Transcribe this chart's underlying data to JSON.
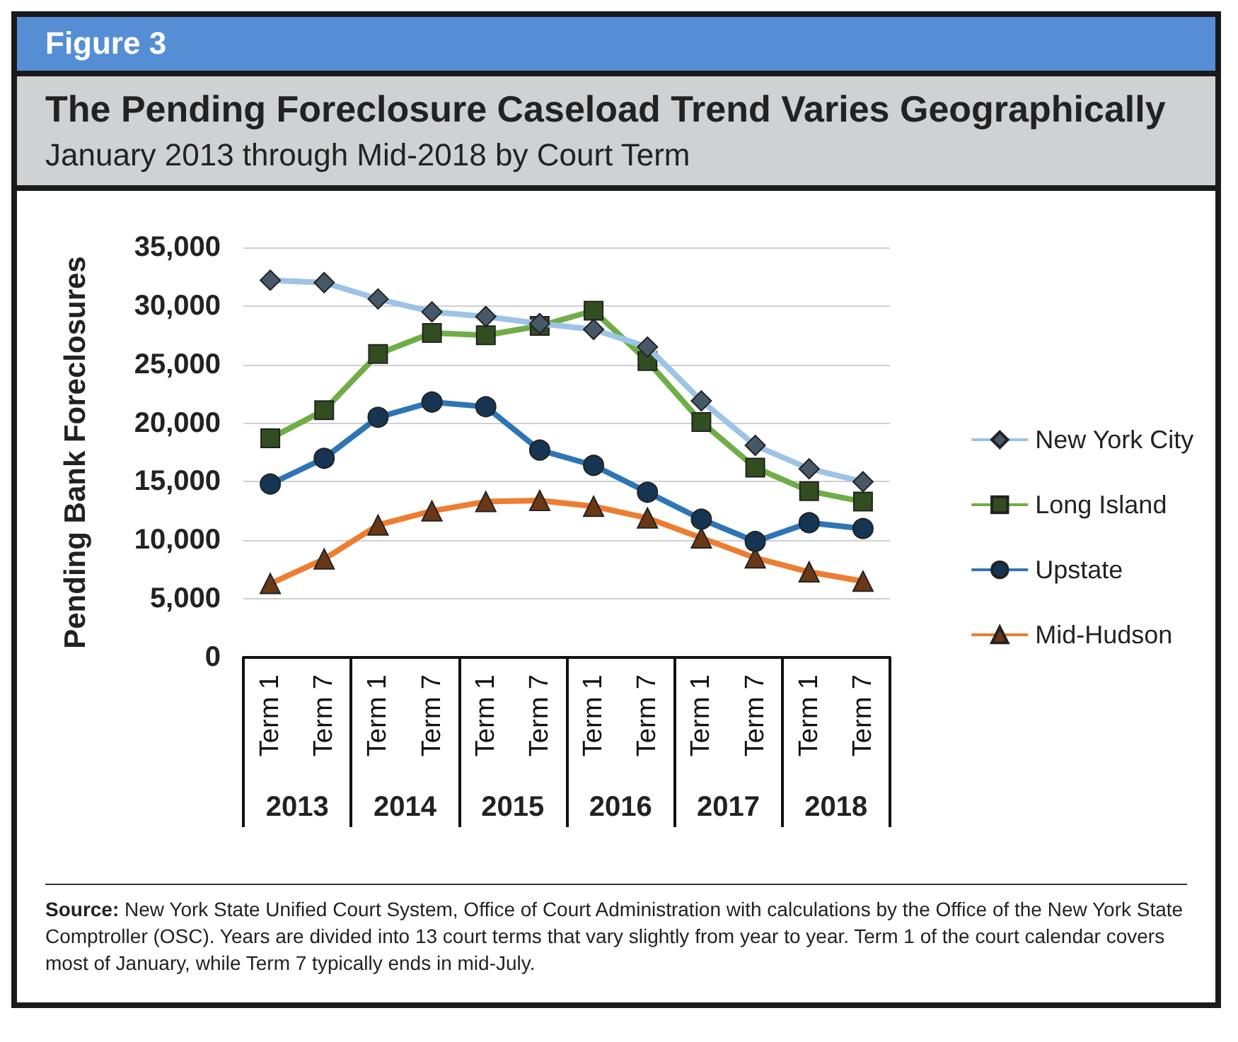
{
  "chart_data": {
    "type": "line",
    "title": "The Pending Foreclosure Caseload Trend Varies Geographically",
    "subtitle": "January 2013 through Mid-2018 by Court Term",
    "ylabel": "Pending Bank Foreclosures",
    "categories": [
      "Term 1",
      "Term 7",
      "Term 1",
      "Term 7",
      "Term 1",
      "Term 7",
      "Term 1",
      "Term 7",
      "Term 1",
      "Term 7",
      "Term 1",
      "Term 7"
    ],
    "series": [
      {
        "name": "New York City",
        "color": "#9dc3e6",
        "marker": "diamond",
        "values": [
          32200,
          32000,
          30600,
          29500,
          29100,
          28500,
          28000,
          26500,
          21900,
          18100,
          16100,
          15000
        ]
      },
      {
        "name": "Long Island",
        "color": "#70ad47",
        "marker": "square",
        "values": [
          18700,
          21100,
          25900,
          27700,
          27500,
          28300,
          29600,
          25300,
          20100,
          16200,
          14200,
          13300
        ]
      },
      {
        "name": "Upstate",
        "color": "#2e75b6",
        "marker": "circle",
        "values": [
          14800,
          17000,
          20500,
          21800,
          21400,
          17700,
          16400,
          14100,
          11800,
          9900,
          11500,
          11000
        ]
      },
      {
        "name": "Mid-Hudson",
        "color": "#ed7d31",
        "marker": "triangle",
        "values": [
          6300,
          8400,
          11300,
          12500,
          13300,
          13400,
          12900,
          11900,
          10200,
          8500,
          7300,
          6500
        ]
      }
    ],
    "ylim": [
      0,
      35000
    ],
    "yticks": [
      0,
      {
        "value": 5000,
        "label": "5,000"
      },
      {
        "value": 10000,
        "label": "10,000"
      },
      {
        "value": 15000,
        "label": "15,000"
      },
      {
        "value": 20000,
        "label": "20,000"
      },
      {
        "value": 25000,
        "label": "25,000"
      },
      {
        "value": 30000,
        "label": "30,000"
      },
      {
        "value": 35000,
        "label": "35,000"
      }
    ],
    "grid": "y",
    "legend": "right",
    "annotations": [
      "Figure 3",
      "2013",
      "2014",
      "2015",
      "2016",
      "2017",
      "2018",
      "Source: New York State Unified Court System, Office of Court Administration with calculations by the Office of the New York State Comptroller (OSC). Years are divided into 13 court terms that vary slightly from year to year. Term 1 of the court calendar covers most of January, while Term 7 typically ends in mid-July."
    ]
  }
}
